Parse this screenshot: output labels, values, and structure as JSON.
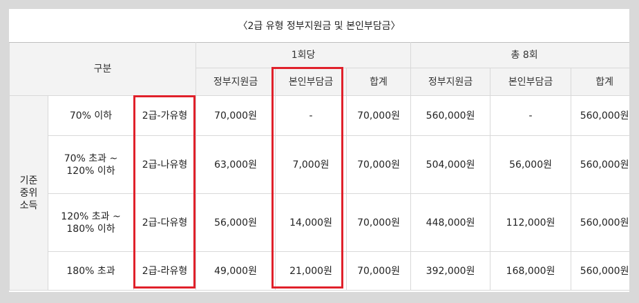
{
  "caption": "〈2급 유형 정부지원금 및 본인부담금〉",
  "header": {
    "category": "구분",
    "per_session": "1회당",
    "total": "총 8회",
    "sub": [
      "정부지원금",
      "본인부담금",
      "합계",
      "정부지원금",
      "본인부담금",
      "합계"
    ]
  },
  "left_group_label": "기준\n중위\n소득",
  "rows": [
    {
      "income": "70% 이하",
      "type": "2급-가유형",
      "gov": "70,000원",
      "self": "-",
      "sum": "70,000원",
      "gov8": "560,000원",
      "self8": "-",
      "sum8": "560,000원"
    },
    {
      "income": "70% 초과 ~\n120% 이하",
      "type": "2급-나유형",
      "gov": "63,000원",
      "self": "7,000원",
      "sum": "70,000원",
      "gov8": "504,000원",
      "self8": "56,000원",
      "sum8": "560,000원"
    },
    {
      "income": "120% 초과 ~\n180% 이하",
      "type": "2급-다유형",
      "gov": "56,000원",
      "self": "14,000원",
      "sum": "70,000원",
      "gov8": "448,000원",
      "self8": "112,000원",
      "sum8": "560,000원"
    },
    {
      "income": "180% 초과",
      "type": "2급-라유형",
      "gov": "49,000원",
      "self": "21,000원",
      "sum": "70,000원",
      "gov8": "392,000원",
      "self8": "168,000원",
      "sum8": "560,000원"
    }
  ],
  "highlight_color": "#e0202a"
}
